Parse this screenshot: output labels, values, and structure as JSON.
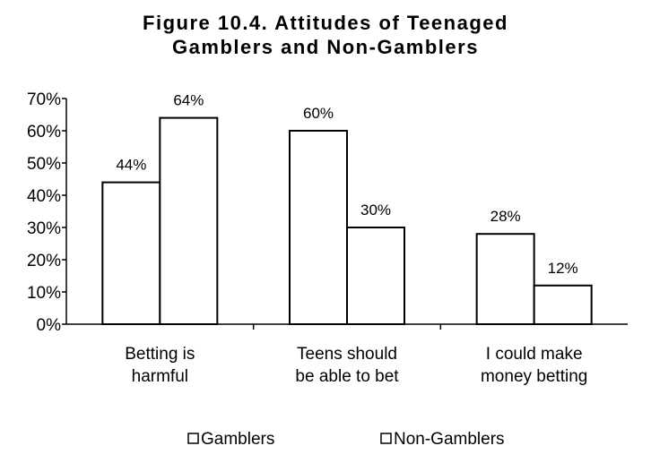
{
  "chart_data": {
    "type": "bar",
    "title_lines": [
      "Figure 10.4. Attitudes of Teenaged",
      "Gamblers and Non-Gamblers"
    ],
    "categories": [
      [
        "Betting is",
        "harmful"
      ],
      [
        "Teens should",
        "be able to bet"
      ],
      [
        "I could make",
        "money betting"
      ]
    ],
    "series": [
      {
        "name": "Gamblers",
        "values": [
          44,
          60,
          28
        ],
        "labels": [
          "44%",
          "60%",
          "28%"
        ]
      },
      {
        "name": "Non-Gamblers",
        "values": [
          64,
          30,
          12
        ],
        "labels": [
          "64%",
          "30%",
          "12%"
        ]
      }
    ],
    "ylim": [
      0,
      70
    ],
    "yticks": [
      0,
      10,
      20,
      30,
      40,
      50,
      60,
      70
    ],
    "ytick_labels": [
      "0%",
      "10%",
      "20%",
      "30%",
      "40%",
      "50%",
      "60%",
      "70%"
    ],
    "xlabel": "",
    "ylabel": "",
    "grid": false,
    "legend_position": "bottom",
    "bar_fill": "#ffffff",
    "bar_stroke": "#000000"
  }
}
